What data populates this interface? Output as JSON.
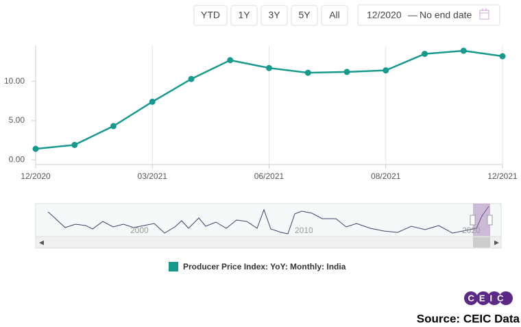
{
  "chart_data": {
    "type": "line",
    "categories": [
      "12/2020",
      null,
      null,
      "03/2021",
      null,
      null,
      "06/2021",
      null,
      null,
      "08/2021",
      null,
      null,
      "12/2021"
    ],
    "series": [
      {
        "name": "Producer Price Index: YoY: Monthly: India",
        "color": "#17998d",
        "values": [
          1.4,
          1.9,
          4.3,
          7.4,
          10.3,
          12.7,
          11.7,
          11.1,
          11.2,
          11.4,
          13.5,
          13.9,
          13.2
        ]
      }
    ],
    "ylim": [
      -0.6,
      14.6
    ],
    "yticks": [
      {
        "value": 0,
        "label": "0.00"
      },
      {
        "value": 5,
        "label": "5.00"
      },
      {
        "value": 10,
        "label": "10.00"
      }
    ],
    "grid": true
  },
  "controls": {
    "range_buttons": [
      "YTD",
      "1Y",
      "3Y",
      "5Y",
      "All"
    ],
    "date_from": "12/2020",
    "date_separator": "—",
    "date_to": "No end date"
  },
  "navigator": {
    "labels": [
      "2000",
      "2010",
      "2020"
    ]
  },
  "logo": "CEIC",
  "source": "Source: CEIC Data"
}
